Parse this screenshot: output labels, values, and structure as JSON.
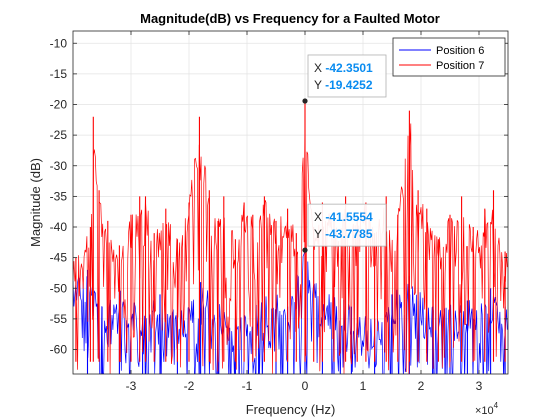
{
  "chart_data": {
    "type": "line",
    "title": "Magnitude(dB) vs Frequency for a Faulted Motor",
    "xlabel": "Frequency (Hz)",
    "ylabel": "Magnitude (dB)",
    "x_exponent_label": "×10",
    "x_exponent_power": "4",
    "x_scale": 10000,
    "xlim": [
      -40000,
      35000
    ],
    "ylim": [
      -64,
      -8
    ],
    "grid": true,
    "legend_position": "top-right",
    "x_ticks": [
      {
        "value": -30000,
        "label": "-3"
      },
      {
        "value": -20000,
        "label": "-2"
      },
      {
        "value": -10000,
        "label": "-1"
      },
      {
        "value": 0,
        "label": "0"
      },
      {
        "value": 10000,
        "label": "1"
      },
      {
        "value": 20000,
        "label": "2"
      },
      {
        "value": 30000,
        "label": "3"
      }
    ],
    "y_ticks": [
      {
        "value": -10,
        "label": "-10"
      },
      {
        "value": -15,
        "label": "-15"
      },
      {
        "value": -20,
        "label": "-20"
      },
      {
        "value": -25,
        "label": "-25"
      },
      {
        "value": -30,
        "label": "-30"
      },
      {
        "value": -35,
        "label": "-35"
      },
      {
        "value": -40,
        "label": "-40"
      },
      {
        "value": -45,
        "label": "-45"
      },
      {
        "value": -50,
        "label": "-50"
      },
      {
        "value": -55,
        "label": "-55"
      },
      {
        "value": -60,
        "label": "-60"
      }
    ],
    "series": [
      {
        "name": "Position 6",
        "color": "#0000ff",
        "noise_floor_db": -62,
        "points": [
          {
            "x": -37500,
            "y": -47
          },
          {
            "x": -35000,
            "y": -53
          },
          {
            "x": -32000,
            "y": -49
          },
          {
            "x": -28000,
            "y": -53
          },
          {
            "x": -25000,
            "y": -51
          },
          {
            "x": -22000,
            "y": -54
          },
          {
            "x": -18000,
            "y": -49
          },
          {
            "x": -15000,
            "y": -52
          },
          {
            "x": -12000,
            "y": -55
          },
          {
            "x": -8000,
            "y": -52
          },
          {
            "x": -5000,
            "y": -50
          },
          {
            "x": -3000,
            "y": -53
          },
          {
            "x": 0,
            "y": -43.7785
          },
          {
            "x": 3000,
            "y": -52
          },
          {
            "x": 5000,
            "y": -50
          },
          {
            "x": 8000,
            "y": -53
          },
          {
            "x": 12000,
            "y": -55
          },
          {
            "x": 15000,
            "y": -51
          },
          {
            "x": 18000,
            "y": -48
          },
          {
            "x": 22000,
            "y": -53
          },
          {
            "x": 25000,
            "y": -51
          },
          {
            "x": 28000,
            "y": -52
          },
          {
            "x": 32000,
            "y": -50
          },
          {
            "x": 34500,
            "y": -53
          }
        ]
      },
      {
        "name": "Position 7",
        "color": "#ff0000",
        "noise_floor_db": -58,
        "points": [
          {
            "x": -39500,
            "y": -45
          },
          {
            "x": -37000,
            "y": -40
          },
          {
            "x": -36500,
            "y": -22
          },
          {
            "x": -35500,
            "y": -34
          },
          {
            "x": -34000,
            "y": -39
          },
          {
            "x": -32000,
            "y": -43
          },
          {
            "x": -30000,
            "y": -38
          },
          {
            "x": -28500,
            "y": -35
          },
          {
            "x": -27500,
            "y": -35
          },
          {
            "x": -26000,
            "y": -41
          },
          {
            "x": -24000,
            "y": -37
          },
          {
            "x": -22000,
            "y": -42
          },
          {
            "x": -20000,
            "y": -36
          },
          {
            "x": -18200,
            "y": -22
          },
          {
            "x": -16500,
            "y": -34
          },
          {
            "x": -15000,
            "y": -39
          },
          {
            "x": -14000,
            "y": -35
          },
          {
            "x": -12000,
            "y": -42
          },
          {
            "x": -10500,
            "y": -36
          },
          {
            "x": -9000,
            "y": -38
          },
          {
            "x": -7000,
            "y": -35
          },
          {
            "x": -5000,
            "y": -39
          },
          {
            "x": -3000,
            "y": -37
          },
          {
            "x": -1500,
            "y": -41
          },
          {
            "x": 0,
            "y": -19.4252
          },
          {
            "x": 1500,
            "y": -40
          },
          {
            "x": 3000,
            "y": -36
          },
          {
            "x": 5000,
            "y": -39
          },
          {
            "x": 7000,
            "y": -35
          },
          {
            "x": 9000,
            "y": -38
          },
          {
            "x": 10500,
            "y": -36
          },
          {
            "x": 12000,
            "y": -41
          },
          {
            "x": 14000,
            "y": -35
          },
          {
            "x": 16000,
            "y": -38
          },
          {
            "x": 18000,
            "y": -21
          },
          {
            "x": 19500,
            "y": -34
          },
          {
            "x": 21000,
            "y": -37
          },
          {
            "x": 23000,
            "y": -42
          },
          {
            "x": 25000,
            "y": -38
          },
          {
            "x": 27000,
            "y": -35
          },
          {
            "x": 29000,
            "y": -40
          },
          {
            "x": 31000,
            "y": -37
          },
          {
            "x": 32500,
            "y": -34
          },
          {
            "x": 34500,
            "y": -44
          }
        ]
      }
    ],
    "datatips": [
      {
        "x": -42.3501,
        "y": -19.4252,
        "x_label": "X",
        "y_label": "Y",
        "x_text": "-42.3501",
        "y_text": "-19.4252"
      },
      {
        "x": -41.5554,
        "y": -43.7785,
        "x_label": "X",
        "y_label": "Y",
        "x_text": "-41.5554",
        "y_text": "-43.7785"
      }
    ]
  }
}
